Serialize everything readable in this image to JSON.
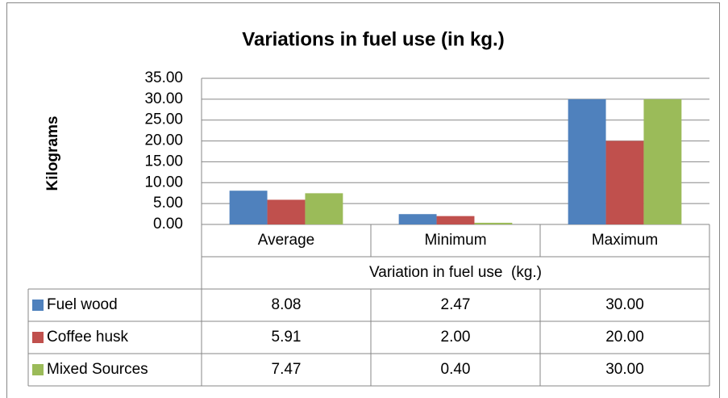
{
  "chart_data": {
    "type": "bar",
    "title": "Variations in fuel use (in kg.)",
    "y_label": "Kilograms",
    "x_label": "Variation in fuel use  (kg.)",
    "categories": [
      "Average",
      "Minimum",
      "Maximum"
    ],
    "series": [
      {
        "name": "Fuel wood",
        "color": "#4f81bd",
        "values": [
          8.08,
          2.47,
          30
        ],
        "value_labels": [
          "8.08",
          "2.47",
          "30.00"
        ]
      },
      {
        "name": "Coffee husk",
        "color": "#c0504d",
        "values": [
          5.91,
          2,
          20
        ],
        "value_labels": [
          "5.91",
          "2.00",
          "20.00"
        ]
      },
      {
        "name": "Mixed Sources",
        "color": "#9bbb59",
        "values": [
          7.47,
          0.4,
          30
        ],
        "value_labels": [
          "7.47",
          "0.40",
          "30.00"
        ]
      }
    ],
    "ylim": [
      0,
      35
    ],
    "yticks": [
      {
        "value": 0,
        "label": "0.00"
      },
      {
        "value": 5,
        "label": "5.00"
      },
      {
        "value": 10,
        "label": "10.00"
      },
      {
        "value": 15,
        "label": "15.00"
      },
      {
        "value": 20,
        "label": "20.00"
      },
      {
        "value": 25,
        "label": "25.00"
      },
      {
        "value": 30,
        "label": "30.00"
      },
      {
        "value": 35,
        "label": "35.00"
      }
    ],
    "grid": true,
    "data_table": true
  }
}
